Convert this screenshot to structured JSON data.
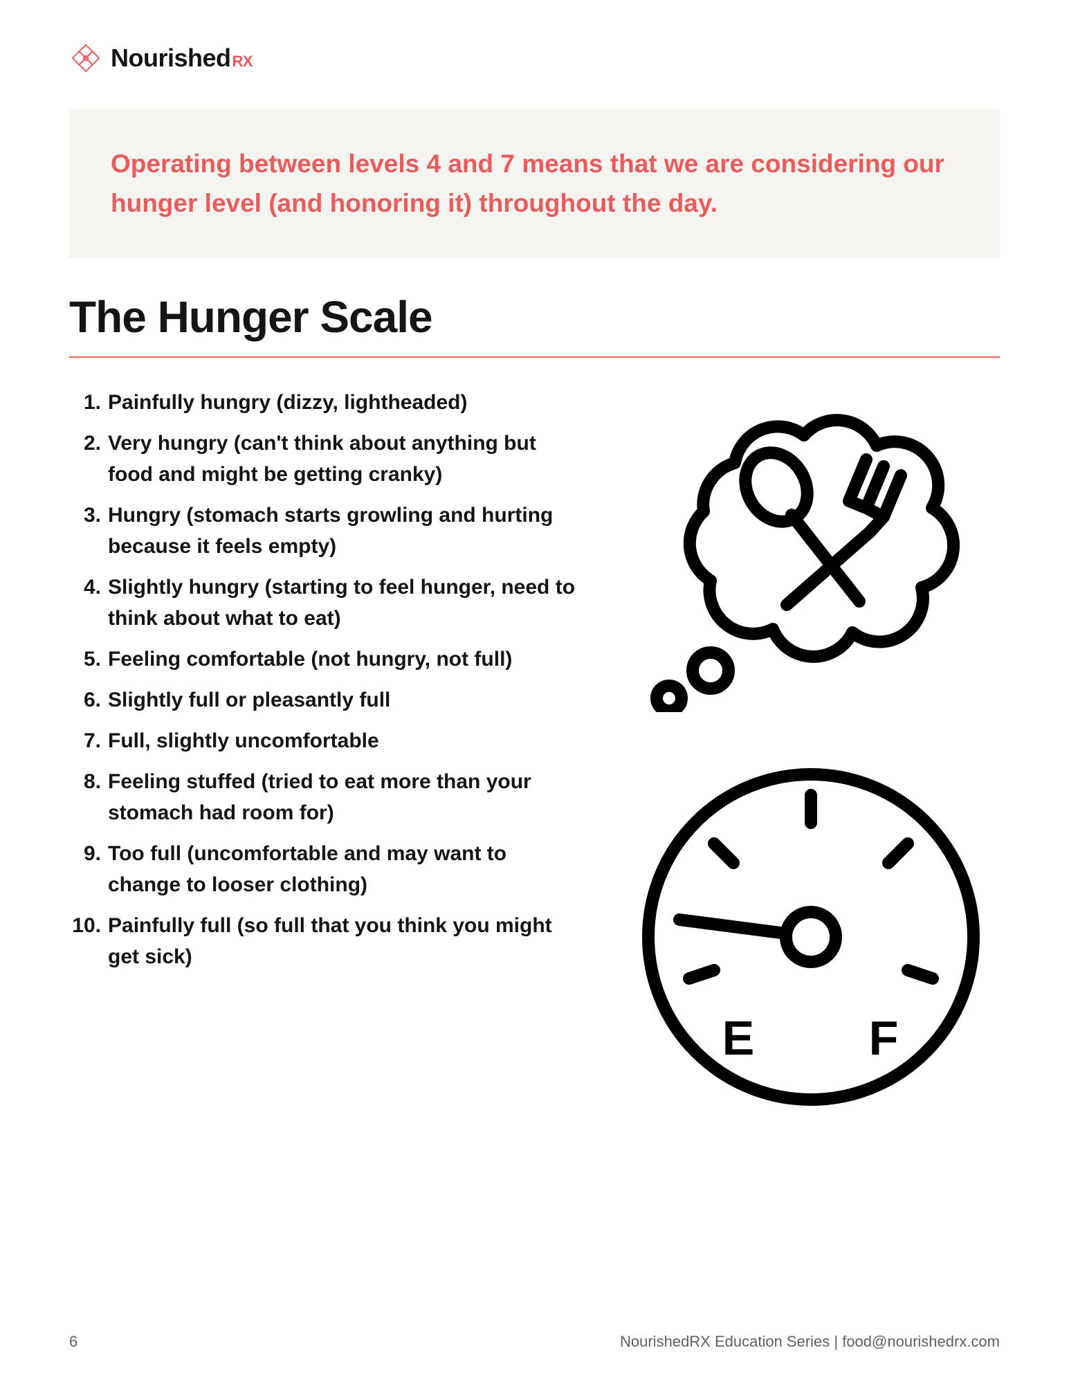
{
  "brand": {
    "name_main": "Nourished",
    "name_suffix": "RX",
    "name_color": "#151515",
    "suffix_color": "#e95c5c",
    "icon_stroke": "#e95c5c"
  },
  "callout": {
    "text": "Operating between levels 4 and 7 means that we are considering our hunger level (and honoring it) throughout the day.",
    "bg_color": "#f6f4f0",
    "text_color": "#e95c5c"
  },
  "title": {
    "text": "The Hunger Scale",
    "color": "#151515"
  },
  "divider_color": "#e95c5c",
  "scale_items": [
    "Painfully hungry (dizzy, lightheaded)",
    "Very hungry (can't think about anything but food and might be getting  cranky)",
    "Hungry (stomach starts growling and hurting because it feels empty)",
    "Slightly hungry (starting to feel hunger, need to think about what to eat)",
    "Feeling comfortable (not hungry, not full)",
    "Slightly full or pleasantly full",
    "Full, slightly uncomfortable",
    "Feeling stuffed (tried to eat more than your stomach had room for)",
    "Too full (uncomfortable and may want to change to looser clothing)",
    "Painfully full (so full that you think you might get sick)"
  ],
  "list_text_color": "#151515",
  "icons": {
    "stroke": "#000000",
    "stroke_width": 18,
    "gauge_labels": {
      "empty": "E",
      "full": "F"
    }
  },
  "footer": {
    "page_number": "6",
    "series_text": "NourishedRX Education Series  |  food@nourishedrx.com",
    "color": "#606060"
  }
}
